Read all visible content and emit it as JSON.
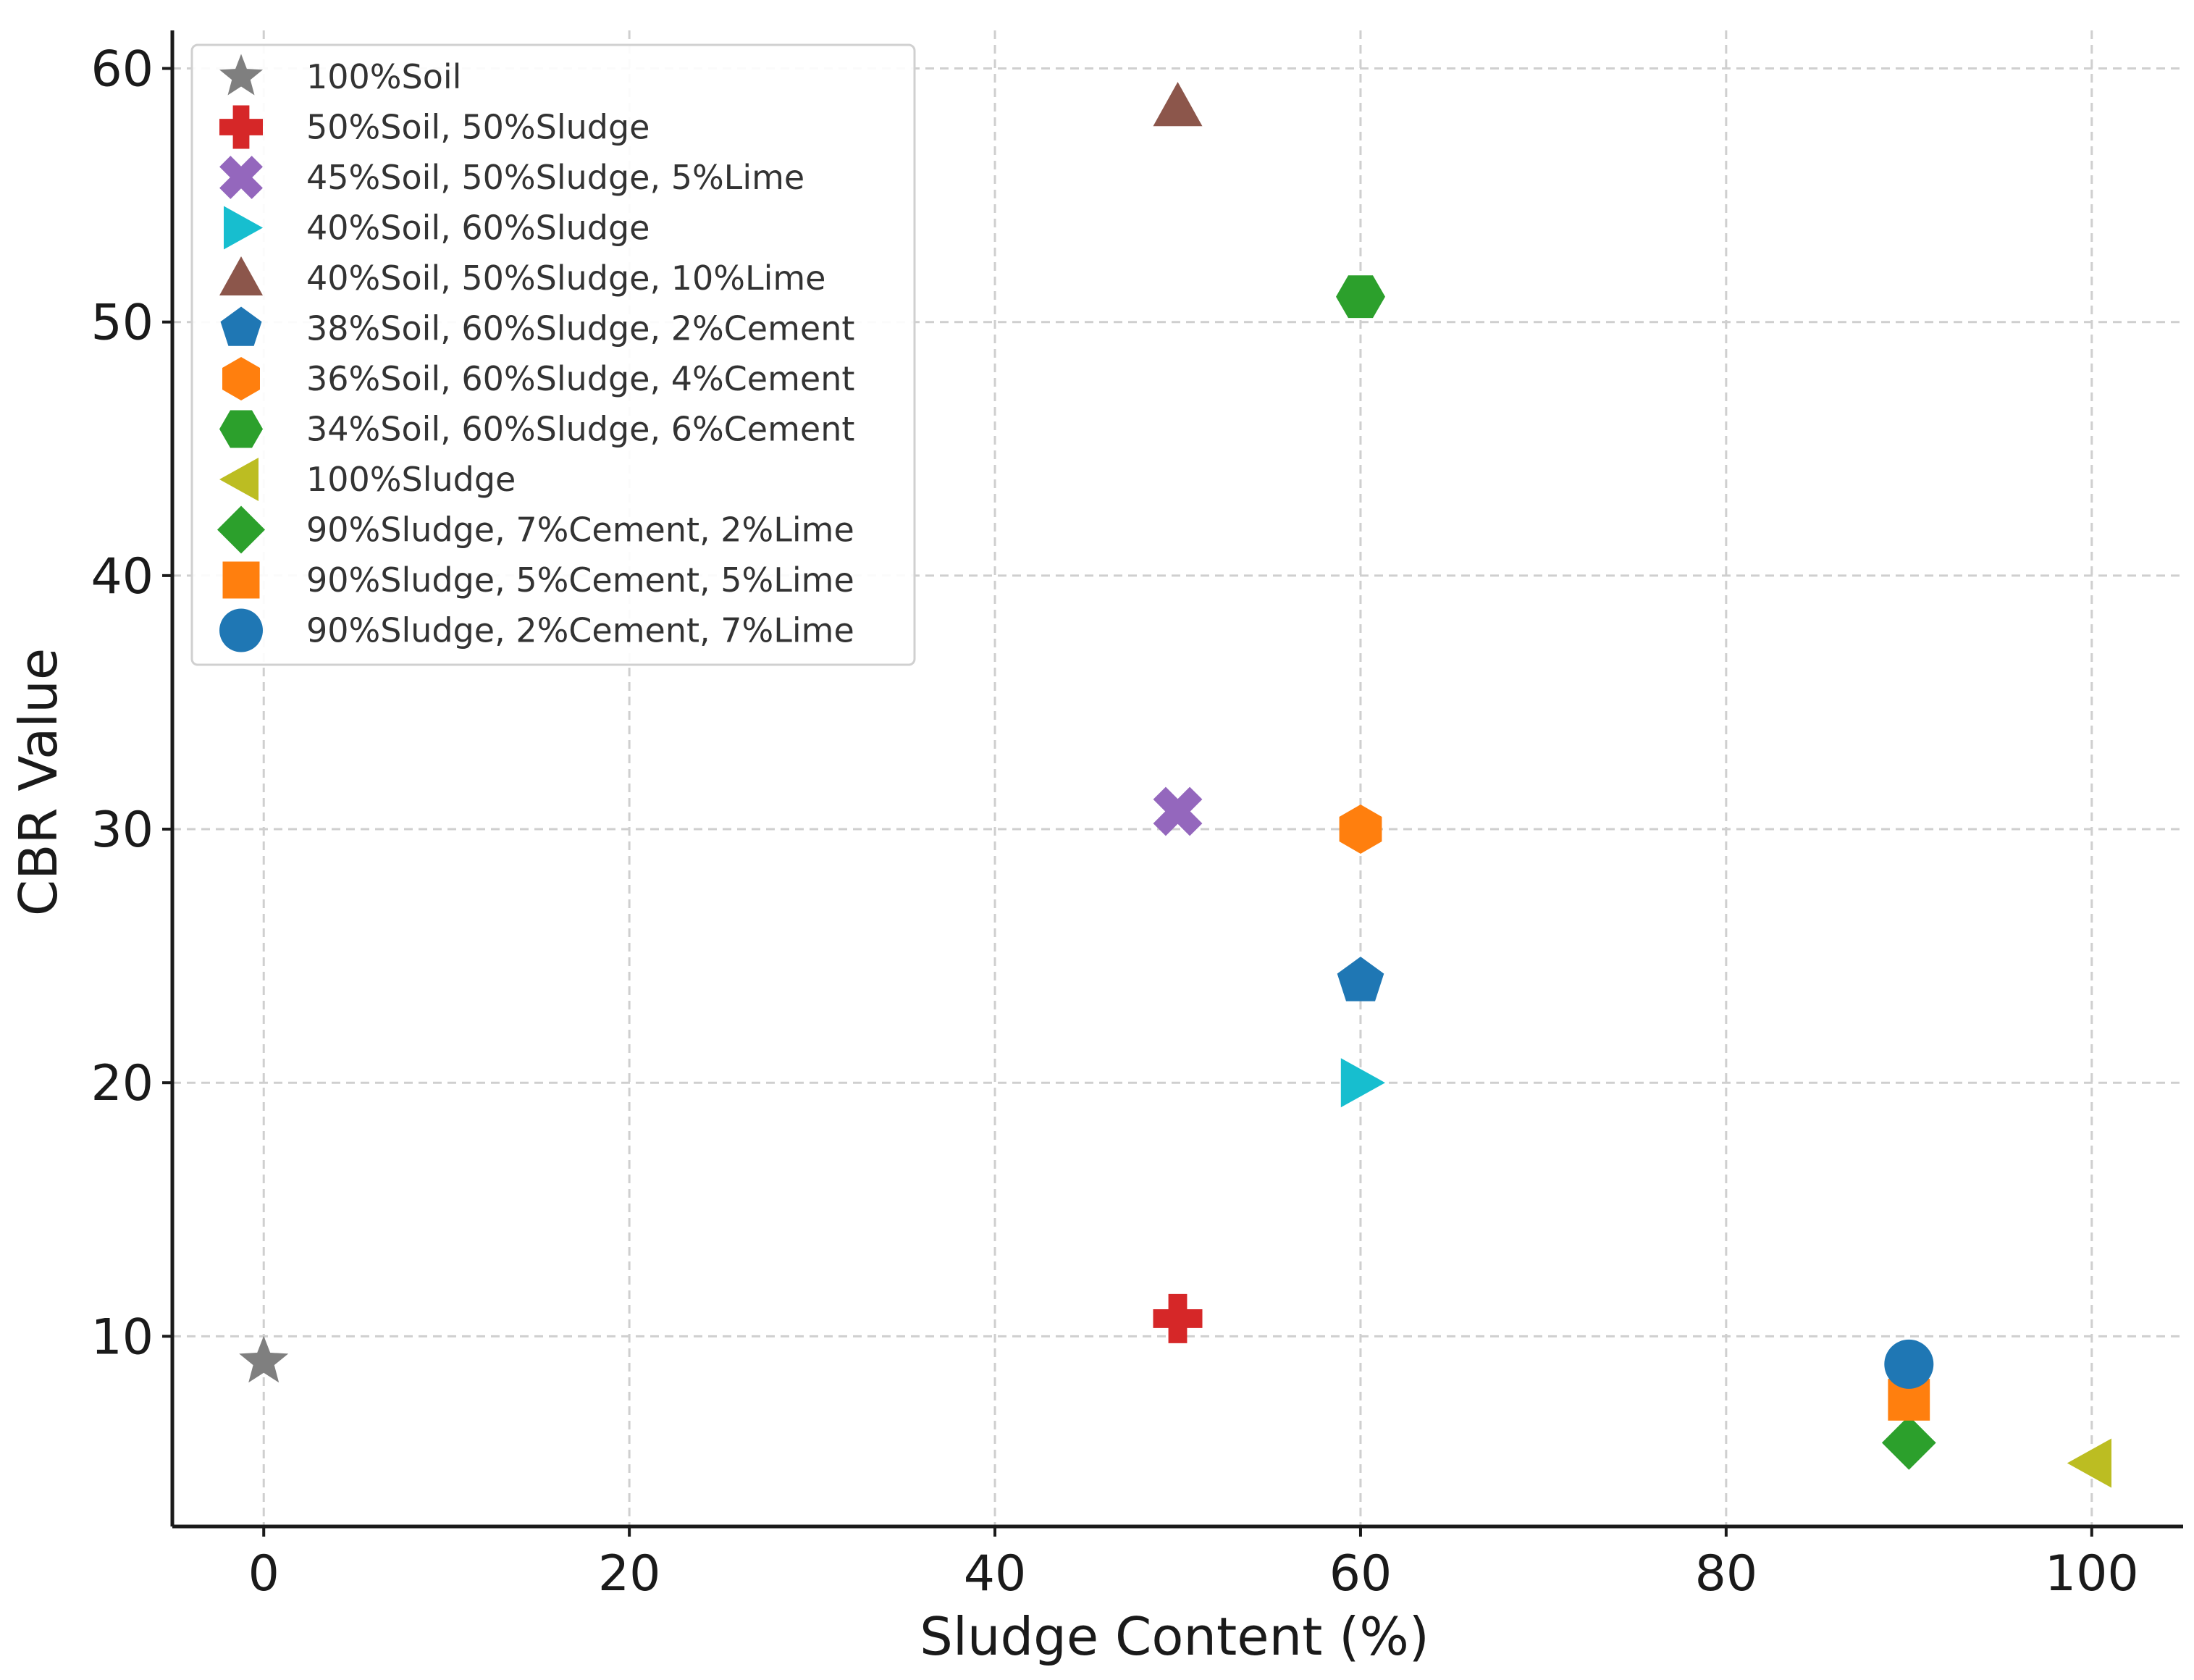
{
  "chart_data": {
    "type": "scatter",
    "title": "",
    "xlabel": "Sludge Content (%)",
    "ylabel": "CBR Value",
    "xlim": [
      -5,
      105
    ],
    "ylim": [
      2.5,
      61.5
    ],
    "xticks": [
      0,
      20,
      40,
      60,
      80,
      100
    ],
    "yticks": [
      10,
      20,
      30,
      40,
      50,
      60
    ],
    "grid": true,
    "legend_position": "top-left",
    "series": [
      {
        "name": "100%Soil",
        "marker": "star",
        "color": "#7f7f7f",
        "points": [
          {
            "x": 0,
            "y": 9
          }
        ]
      },
      {
        "name": "50%Soil, 50%Sludge",
        "marker": "plus",
        "color": "#d62728",
        "points": [
          {
            "x": 50,
            "y": 10.7
          }
        ]
      },
      {
        "name": "45%Soil, 50%Sludge, 5%Lime",
        "marker": "x",
        "color": "#9467bd",
        "points": [
          {
            "x": 50,
            "y": 30.7
          }
        ]
      },
      {
        "name": "40%Soil, 60%Sludge",
        "marker": "triangle-right",
        "color": "#17becf",
        "points": [
          {
            "x": 60,
            "y": 20
          }
        ]
      },
      {
        "name": "40%Soil, 50%Sludge, 10%Lime",
        "marker": "triangle-up",
        "color": "#8c564b",
        "points": [
          {
            "x": 50,
            "y": 58.5
          }
        ]
      },
      {
        "name": "38%Soil, 60%Sludge, 2%Cement",
        "marker": "pentagon",
        "color": "#1f77b4",
        "points": [
          {
            "x": 60,
            "y": 24
          }
        ]
      },
      {
        "name": "36%Soil, 60%Sludge, 4%Cement",
        "marker": "hexagon",
        "color": "#ff7f0e",
        "points": [
          {
            "x": 60,
            "y": 30
          }
        ]
      },
      {
        "name": "34%Soil, 60%Sludge, 6%Cement",
        "marker": "hexagon2",
        "color": "#2ca02c",
        "points": [
          {
            "x": 60,
            "y": 51
          }
        ]
      },
      {
        "name": "100%Sludge",
        "marker": "triangle-left",
        "color": "#bcbd22",
        "points": [
          {
            "x": 100,
            "y": 5
          }
        ]
      },
      {
        "name": "90%Sludge, 7%Cement, 2%Lime",
        "marker": "diamond",
        "color": "#2ca02c",
        "points": [
          {
            "x": 90,
            "y": 5.8
          }
        ]
      },
      {
        "name": "90%Sludge, 5%Cement, 5%Lime",
        "marker": "square",
        "color": "#ff7f0e",
        "points": [
          {
            "x": 90,
            "y": 7.5
          }
        ]
      },
      {
        "name": "90%Sludge, 2%Cement, 7%Lime",
        "marker": "circle",
        "color": "#1f77b4",
        "points": [
          {
            "x": 90,
            "y": 8.9
          }
        ]
      }
    ]
  }
}
